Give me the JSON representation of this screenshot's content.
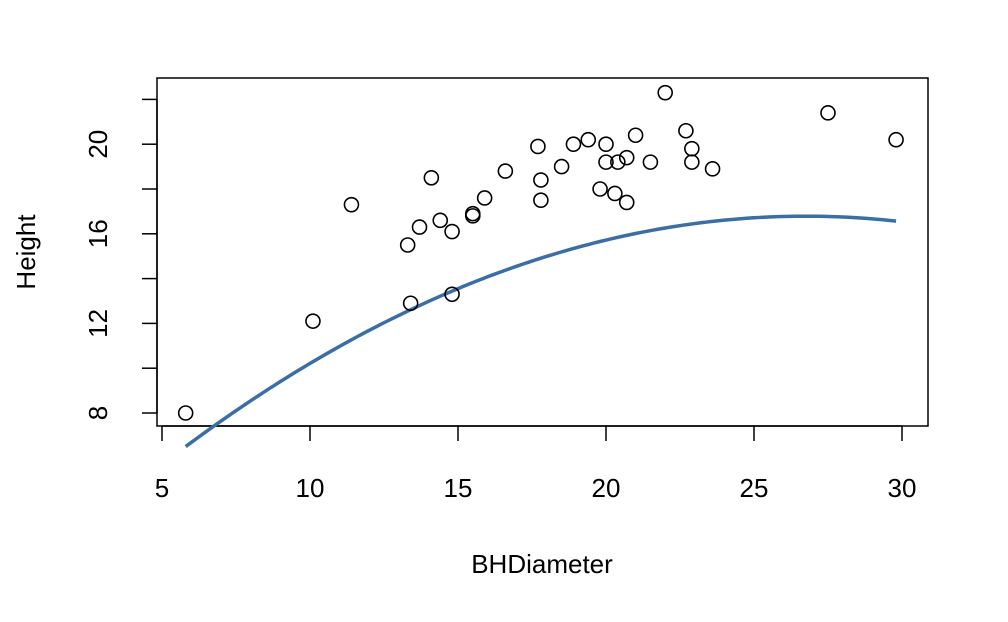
{
  "chart_data": {
    "type": "scatter",
    "title": "",
    "xlabel": "BHDiameter",
    "ylabel": "Height",
    "xlim": [
      5,
      30
    ],
    "ylim": [
      8,
      22
    ],
    "xticks": [
      5,
      10,
      15,
      20,
      25,
      30
    ],
    "yticks": [
      8,
      10,
      12,
      14,
      16,
      18,
      20,
      22
    ],
    "ytick_labels": [
      {
        "value": 8,
        "label": "8"
      },
      {
        "value": 12,
        "label": "12"
      },
      {
        "value": 16,
        "label": "16"
      },
      {
        "value": 20,
        "label": "20"
      }
    ],
    "grid": false,
    "legend": "none",
    "points": [
      {
        "x": 5.8,
        "y": 8.0
      },
      {
        "x": 10.1,
        "y": 12.1
      },
      {
        "x": 11.4,
        "y": 17.3
      },
      {
        "x": 13.3,
        "y": 15.5
      },
      {
        "x": 13.4,
        "y": 12.9
      },
      {
        "x": 13.7,
        "y": 16.3
      },
      {
        "x": 14.1,
        "y": 18.5
      },
      {
        "x": 14.4,
        "y": 16.6
      },
      {
        "x": 14.8,
        "y": 16.1
      },
      {
        "x": 14.8,
        "y": 13.3
      },
      {
        "x": 15.5,
        "y": 16.8
      },
      {
        "x": 15.5,
        "y": 16.9
      },
      {
        "x": 15.9,
        "y": 17.6
      },
      {
        "x": 16.6,
        "y": 18.8
      },
      {
        "x": 17.7,
        "y": 19.9
      },
      {
        "x": 17.8,
        "y": 18.4
      },
      {
        "x": 17.8,
        "y": 17.5
      },
      {
        "x": 18.5,
        "y": 19.0
      },
      {
        "x": 18.9,
        "y": 20.0
      },
      {
        "x": 19.4,
        "y": 20.2
      },
      {
        "x": 19.8,
        "y": 18.0
      },
      {
        "x": 20.0,
        "y": 20.0
      },
      {
        "x": 20.0,
        "y": 19.2
      },
      {
        "x": 20.3,
        "y": 17.8
      },
      {
        "x": 20.4,
        "y": 19.2
      },
      {
        "x": 20.7,
        "y": 17.4
      },
      {
        "x": 20.7,
        "y": 19.4
      },
      {
        "x": 21.0,
        "y": 20.4
      },
      {
        "x": 21.5,
        "y": 19.2
      },
      {
        "x": 22.0,
        "y": 22.3
      },
      {
        "x": 22.7,
        "y": 20.6
      },
      {
        "x": 22.9,
        "y": 19.8
      },
      {
        "x": 22.9,
        "y": 19.2
      },
      {
        "x": 23.6,
        "y": 18.9
      },
      {
        "x": 27.5,
        "y": 21.4
      },
      {
        "x": 29.8,
        "y": 20.2
      }
    ],
    "fit_curve": {
      "type": "quadratic",
      "coefficients": {
        "a": -0.02345,
        "b": 1.2542,
        "c": 0.0162
      },
      "x_range": [
        5.8,
        29.8
      ],
      "color": "#3a6ea5"
    },
    "point_style": {
      "fill": "none",
      "stroke": "#000000"
    }
  }
}
